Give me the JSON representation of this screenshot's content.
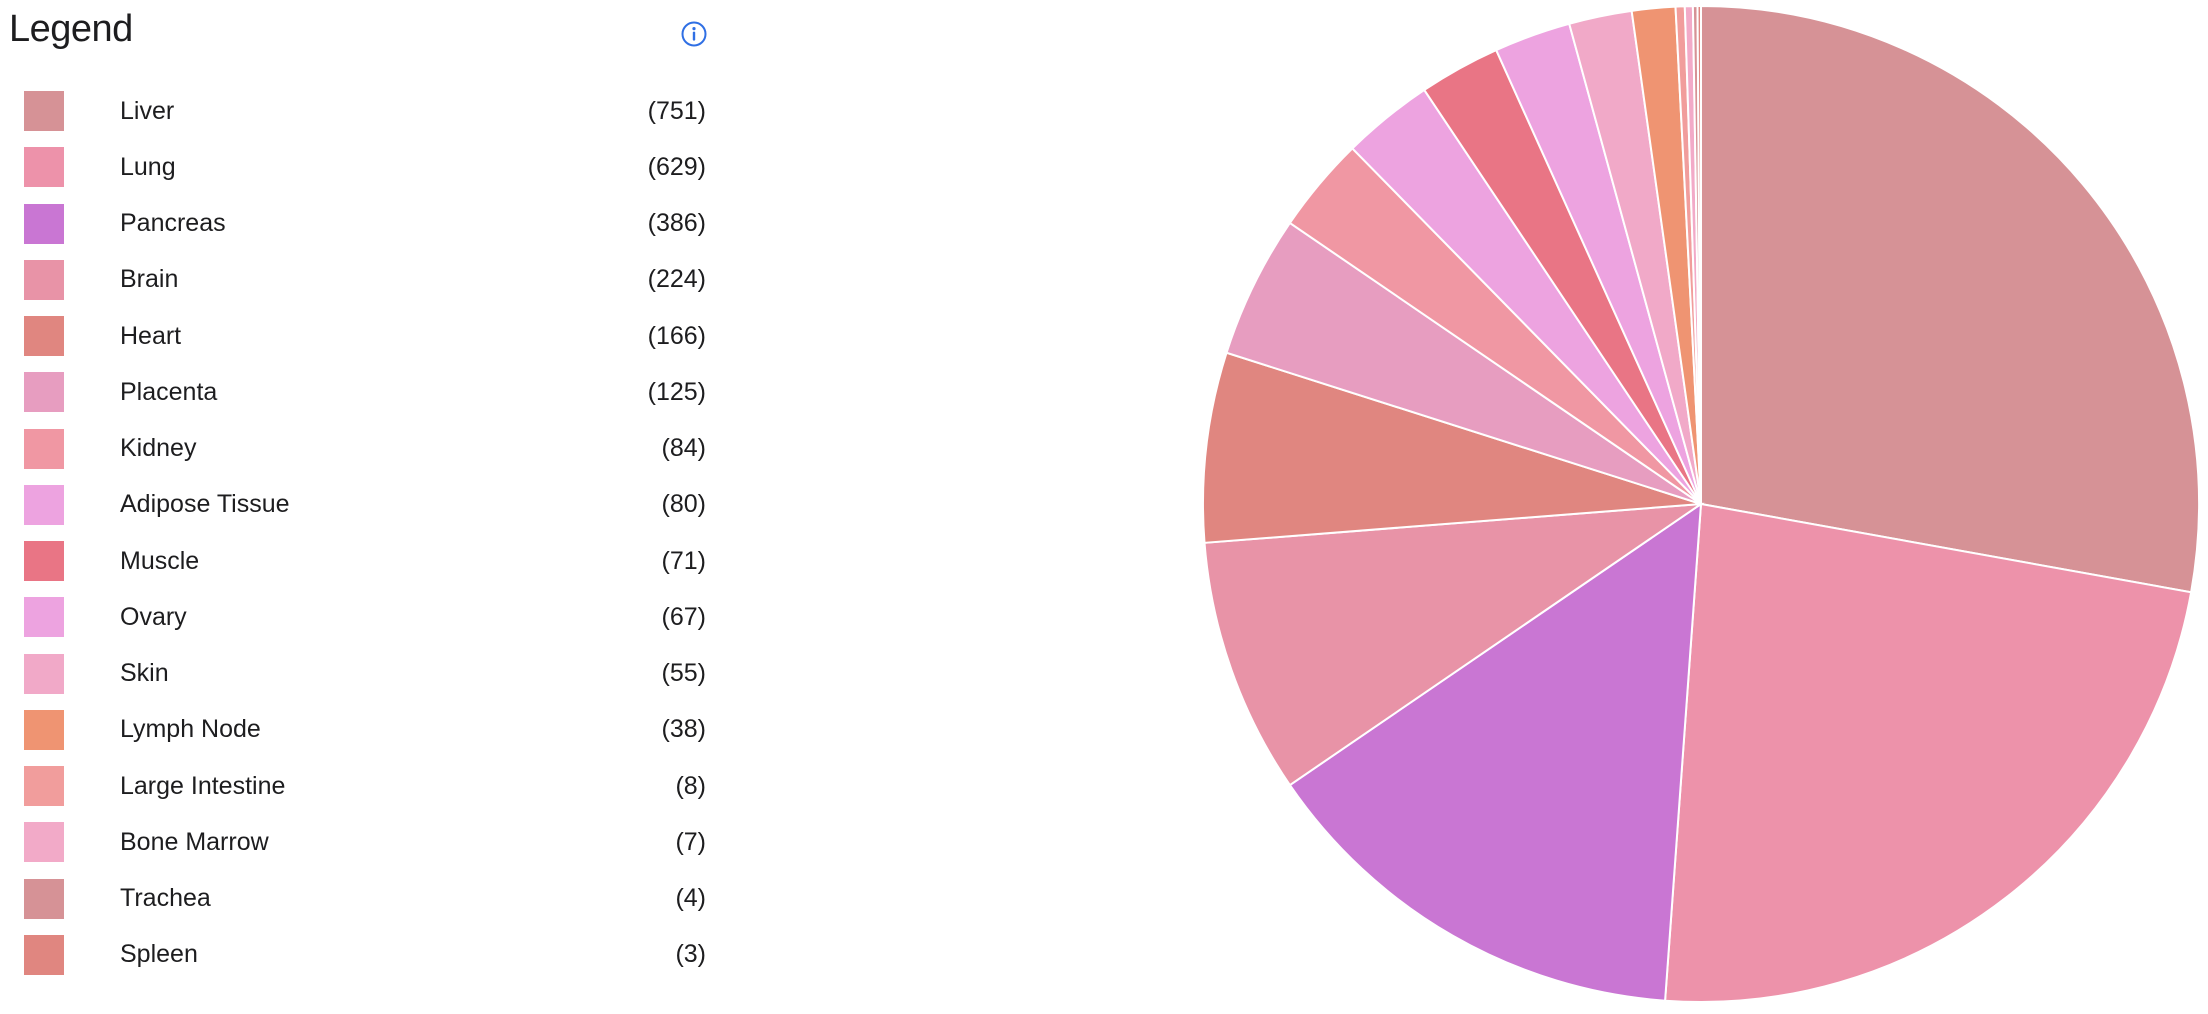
{
  "legend": {
    "title": "Legend",
    "info_icon": "info-circle-icon",
    "info_color": "#2f6fe4"
  },
  "chart_data": {
    "type": "pie",
    "title": "Legend",
    "start_angle_deg": 0,
    "direction": "clockwise",
    "legend_position": "left",
    "categories": [
      "Liver",
      "Lung",
      "Pancreas",
      "Brain",
      "Heart",
      "Placenta",
      "Kidney",
      "Adipose Tissue",
      "Muscle",
      "Ovary",
      "Skin",
      "Lymph Node",
      "Large Intestine",
      "Bone Marrow",
      "Trachea",
      "Spleen"
    ],
    "values": [
      751,
      629,
      386,
      224,
      166,
      125,
      84,
      80,
      71,
      67,
      55,
      38,
      8,
      7,
      4,
      3
    ],
    "count_labels": [
      "(751)",
      "(629)",
      "(386)",
      "(224)",
      "(166)",
      "(125)",
      "(84)",
      "(80)",
      "(71)",
      "(67)",
      "(55)",
      "(38)",
      "(8)",
      "(7)",
      "(4)",
      "(3)"
    ],
    "colors": [
      "#d69296",
      "#ed92aa",
      "#c976d3",
      "#e893a7",
      "#e08680",
      "#e79dc0",
      "#f097a3",
      "#eda3e0",
      "#e97585",
      "#eda3e0",
      "#f1a9c8",
      "#ef9472",
      "#f19d9c",
      "#f2aac8",
      "#d69296",
      "#e08680"
    ]
  }
}
